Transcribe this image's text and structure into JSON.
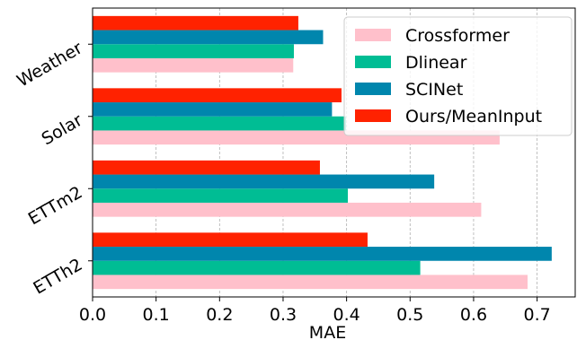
{
  "chart_data": {
    "type": "bar",
    "orientation": "horizontal",
    "title": "",
    "xlabel": "MAE",
    "ylabel": "",
    "xlim": [
      0.0,
      0.76
    ],
    "xticks": [
      0.0,
      0.1,
      0.2,
      0.3,
      0.4,
      0.5,
      0.6,
      0.7
    ],
    "xtick_labels": [
      "0.0",
      "0.1",
      "0.2",
      "0.3",
      "0.4",
      "0.5",
      "0.6",
      "0.7"
    ],
    "grid": "vertical dashed",
    "legend_position": "top-right",
    "categories": [
      "ETTh2",
      "ETTm2",
      "Solar",
      "Weather"
    ],
    "series": [
      {
        "name": "Crossformer",
        "color": "#ffc0cb",
        "values": [
          0.685,
          0.612,
          0.641,
          0.316
        ]
      },
      {
        "name": "Dlinear",
        "color": "#00bd94",
        "values": [
          0.516,
          0.402,
          0.399,
          0.317
        ]
      },
      {
        "name": "SCINet",
        "color": "#0086ad",
        "values": [
          0.723,
          0.538,
          0.377,
          0.363
        ]
      },
      {
        "name": "Ours/MeanInput",
        "color": "#ff2200",
        "values": [
          0.433,
          0.358,
          0.392,
          0.324
        ]
      }
    ]
  }
}
